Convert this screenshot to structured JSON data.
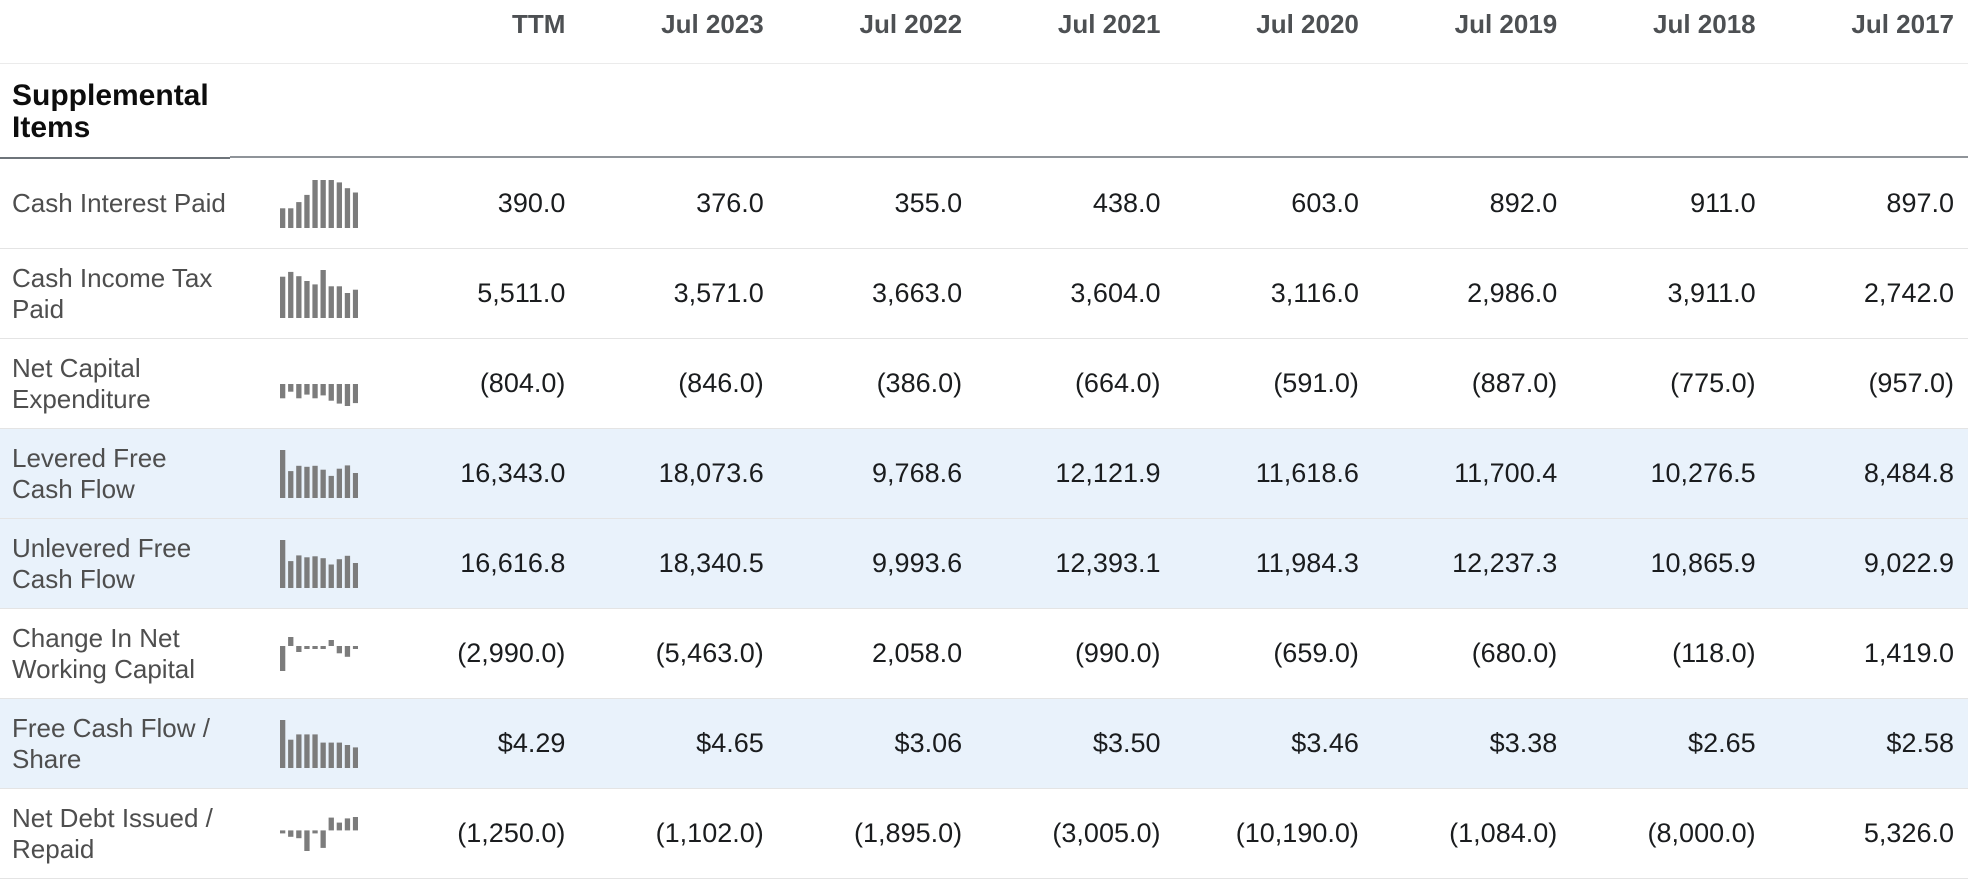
{
  "section": {
    "title": "Supplemental Items"
  },
  "columns": [
    "TTM",
    "Jul 2023",
    "Jul 2022",
    "Jul 2021",
    "Jul 2020",
    "Jul 2019",
    "Jul 2018",
    "Jul 2017"
  ],
  "rows": [
    {
      "label": "Cash Interest Paid",
      "highlight": false,
      "values": [
        "390.0",
        "376.0",
        "355.0",
        "438.0",
        "603.0",
        "892.0",
        "911.0",
        "897.0"
      ],
      "sparkline": [
        0.41,
        0.41,
        0.54,
        0.69,
        1.0,
        1.0,
        1.0,
        0.95,
        0.83,
        0.74
      ]
    },
    {
      "label": "Cash Income Tax Paid",
      "highlight": false,
      "values": [
        "5,511.0",
        "3,571.0",
        "3,663.0",
        "3,604.0",
        "3,116.0",
        "2,986.0",
        "3,911.0",
        "2,742.0"
      ],
      "sparkline": [
        0.86,
        0.96,
        0.87,
        0.77,
        0.7,
        1.0,
        0.66,
        0.66,
        0.52,
        0.59
      ]
    },
    {
      "label": "Net Capital Expenditure",
      "highlight": false,
      "values": [
        "(804.0)",
        "(846.0)",
        "(386.0)",
        "(664.0)",
        "(591.0)",
        "(887.0)",
        "(775.0)",
        "(957.0)"
      ],
      "sparkline": [
        -0.65,
        -0.35,
        -0.65,
        -0.48,
        -0.65,
        -0.52,
        -0.76,
        -0.89,
        -1.0,
        -0.87
      ]
    },
    {
      "label": "Levered Free Cash Flow",
      "highlight": true,
      "values": [
        "16,343.0",
        "18,073.6",
        "9,768.6",
        "12,121.9",
        "11,618.6",
        "11,700.4",
        "10,276.5",
        "8,484.8"
      ],
      "sparkline": [
        1.0,
        0.56,
        0.67,
        0.65,
        0.67,
        0.59,
        0.46,
        0.61,
        0.68,
        0.52
      ]
    },
    {
      "label": "Unlevered Free Cash Flow",
      "highlight": true,
      "values": [
        "16,616.8",
        "18,340.5",
        "9,993.6",
        "12,393.1",
        "11,984.3",
        "12,237.3",
        "10,865.9",
        "9,022.9"
      ],
      "sparkline": [
        1.0,
        0.56,
        0.68,
        0.64,
        0.66,
        0.62,
        0.49,
        0.6,
        0.67,
        0.52
      ]
    },
    {
      "label": "Change In Net Working Capital",
      "highlight": false,
      "values": [
        "(2,990.0)",
        "(5,463.0)",
        "2,058.0",
        "(990.0)",
        "(659.0)",
        "(680.0)",
        "(118.0)",
        "1,419.0"
      ],
      "sparkline": [
        -1.0,
        0.36,
        -0.24,
        -0.1,
        -0.1,
        -0.1,
        0.24,
        -0.29,
        -0.43,
        -0.1
      ]
    },
    {
      "label": "Free Cash Flow / Share",
      "highlight": true,
      "values": [
        "$4.29",
        "$4.65",
        "$3.06",
        "$3.50",
        "$3.46",
        "$3.38",
        "$2.65",
        "$2.58"
      ],
      "sparkline": [
        1.0,
        0.59,
        0.7,
        0.7,
        0.7,
        0.53,
        0.53,
        0.53,
        0.48,
        0.43
      ]
    },
    {
      "label": "Net Debt Issued / Repaid",
      "highlight": false,
      "values": [
        "(1,250.0)",
        "(1,102.0)",
        "(1,895.0)",
        "(3,005.0)",
        "(10,190.0)",
        "(1,084.0)",
        "(8,000.0)",
        "5,326.0"
      ],
      "sparkline": [
        -0.12,
        -0.31,
        -0.38,
        -1.0,
        -0.12,
        -0.85,
        0.62,
        0.38,
        0.58,
        0.65
      ]
    }
  ],
  "colors": {
    "highlight_row": "#e9f2fb",
    "sparkline_bar": "#7c7c7c",
    "label_text": "#4e4e4e",
    "number_text": "#1a1c1e",
    "header_text": "#4d5053",
    "row_divider": "#e4e4e4"
  }
}
